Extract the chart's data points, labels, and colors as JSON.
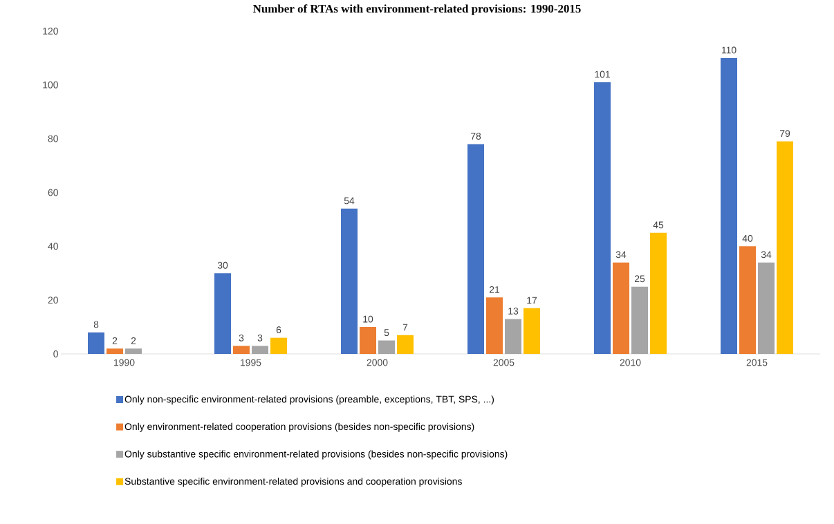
{
  "chart_data": {
    "type": "bar",
    "title": "Number of RTAs with environment-related provisions: 1990-2015",
    "categories": [
      "1990",
      "1995",
      "2000",
      "2005",
      "2010",
      "2015"
    ],
    "series": [
      {
        "name": "Only non-specific environment-related provisions (preamble, exceptions, TBT, SPS, ...)",
        "color": "#4472c4",
        "values": [
          8,
          30,
          54,
          78,
          101,
          110
        ]
      },
      {
        "name": "Only environment-related cooperation provisions (besides non-specific provisions)",
        "color": "#ed7d31",
        "values": [
          2,
          3,
          10,
          21,
          34,
          40
        ]
      },
      {
        "name": "Only substantive specific environment-related provisions (besides non-specific provisions)",
        "color": "#a5a5a5",
        "values": [
          2,
          3,
          5,
          13,
          25,
          34
        ]
      },
      {
        "name": "Substantive specific environment-related provisions and cooperation provisions",
        "color": "#ffc000",
        "values": [
          null,
          6,
          7,
          17,
          45,
          79
        ]
      }
    ],
    "ylim": [
      0,
      120
    ],
    "yticks": [
      0,
      20,
      40,
      60,
      80,
      100,
      120
    ],
    "data_labels": true,
    "grid": false,
    "legend": "bottom"
  }
}
